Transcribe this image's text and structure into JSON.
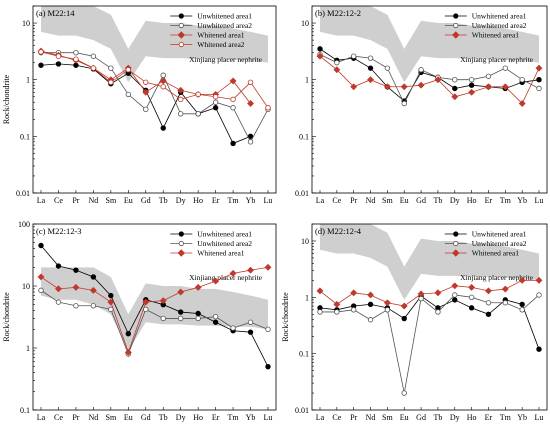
{
  "chart_data": [
    {
      "type": "line",
      "title": "(a) M22:14",
      "xlabel": "",
      "ylabel": "Rock/chondrite",
      "yscale": "log",
      "ylim": [
        0.01,
        20
      ],
      "categories": [
        "La",
        "Ce",
        "Pr",
        "Nd",
        "Sm",
        "Eu",
        "Gd",
        "Tb",
        "Dy",
        "Ho",
        "Er",
        "Tm",
        "Yb",
        "Lu"
      ],
      "y_ticks": [
        "0.01",
        "0.1",
        "1",
        "10"
      ],
      "annotation": "Xinjiang placer nephrite",
      "legend_position": "top-right",
      "band": {
        "upper": [
          20,
          20,
          20,
          20,
          14,
          3.5,
          11,
          10,
          10,
          9,
          9,
          8,
          7,
          6
        ],
        "lower": [
          7,
          6,
          6,
          5,
          3.5,
          0.9,
          2.6,
          2.4,
          2.4,
          2.3,
          2.3,
          2.2,
          2.2,
          2.0
        ]
      },
      "series": [
        {
          "name": "Unwhitened area1",
          "color": "#000000",
          "marker": "filled-circle",
          "values": [
            1.8,
            1.9,
            1.8,
            1.55,
            0.85,
            1.3,
            0.65,
            0.14,
            0.6,
            0.25,
            0.32,
            0.075,
            0.1,
            null
          ]
        },
        {
          "name": "Unwhitened area2",
          "color": "#555555",
          "marker": "open-circle",
          "values": [
            3.0,
            3.0,
            3.0,
            2.6,
            1.6,
            0.55,
            0.3,
            1.2,
            0.25,
            0.25,
            0.4,
            0.32,
            0.08,
            0.3
          ]
        },
        {
          "name": "Whitened area1",
          "color": "#c0392b",
          "marker": "filled-diamond",
          "values": [
            3.2,
            2.7,
            2.2,
            1.6,
            1.0,
            1.6,
            0.6,
            0.95,
            0.65,
            0.55,
            0.55,
            0.95,
            0.38,
            null
          ]
        },
        {
          "name": "Whitened area2",
          "color": "#c0392b",
          "marker": "open-circle",
          "values": [
            3.1,
            2.6,
            2.3,
            1.6,
            0.9,
            1.5,
            0.9,
            0.75,
            0.45,
            0.55,
            0.5,
            0.45,
            0.9,
            0.32
          ]
        }
      ]
    },
    {
      "type": "line",
      "title": "(b) M22:12-2",
      "xlabel": "",
      "ylabel": "",
      "yscale": "log",
      "ylim": [
        0.01,
        20
      ],
      "categories": [
        "La",
        "Ce",
        "Pr",
        "Nd",
        "Sm",
        "Eu",
        "Gd",
        "Tb",
        "Dy",
        "Ho",
        "Er",
        "Tm",
        "Yb",
        "Lu"
      ],
      "y_ticks": [
        "0.01",
        "0.1",
        "1",
        "10"
      ],
      "annotation": "Xinjiang placer nephrite",
      "legend_position": "top-right",
      "band": {
        "upper": [
          20,
          20,
          20,
          20,
          14,
          3.5,
          11,
          10,
          10,
          9,
          9,
          8,
          7,
          6
        ],
        "lower": [
          7,
          6,
          6,
          5,
          3.5,
          0.9,
          2.6,
          2.4,
          2.4,
          2.3,
          2.3,
          2.2,
          2.2,
          2.0
        ]
      },
      "series": [
        {
          "name": "Unwhitened area1",
          "color": "#000000",
          "marker": "filled-circle",
          "values": [
            3.5,
            2.2,
            2.4,
            1.6,
            0.75,
            0.42,
            1.35,
            1.1,
            0.7,
            0.8,
            0.75,
            0.7,
            0.9,
            1.0
          ]
        },
        {
          "name": "Unwhitened area2",
          "color": "#555555",
          "marker": "open-circle",
          "values": [
            2.8,
            2.0,
            2.6,
            2.4,
            1.6,
            0.38,
            1.5,
            1.1,
            1.0,
            1.0,
            1.15,
            1.6,
            1.0,
            0.7
          ]
        },
        {
          "name": "Whitened area1",
          "color": "#c0392b",
          "marker": "filled-diamond",
          "values": [
            2.6,
            1.5,
            0.75,
            1.0,
            0.75,
            0.75,
            0.8,
            1.0,
            0.5,
            0.6,
            0.75,
            0.75,
            0.38,
            1.6
          ]
        }
      ]
    },
    {
      "type": "line",
      "title": "(c) M22:12-3",
      "xlabel": "",
      "ylabel": "Rock/chondrite",
      "yscale": "log",
      "ylim": [
        0.1,
        100
      ],
      "categories": [
        "La",
        "Ce",
        "Pr",
        "Nd",
        "Sm",
        "Eu",
        "Gd",
        "Tb",
        "Dy",
        "Ho",
        "Er",
        "Tm",
        "Yb",
        "Lu"
      ],
      "y_ticks": [
        "0.1",
        "1",
        "10",
        "100"
      ],
      "annotation": "Xinjiang placer nephrite",
      "legend_position": "top-right",
      "band": {
        "upper": [
          20,
          20,
          20,
          20,
          14,
          3.5,
          11,
          10,
          10,
          9,
          9,
          8,
          7,
          6
        ],
        "lower": [
          7,
          6,
          6,
          5,
          3.5,
          0.9,
          2.6,
          2.4,
          2.4,
          2.3,
          2.3,
          2.2,
          2.2,
          2.0
        ]
      },
      "series": [
        {
          "name": "Unwhitened area1",
          "color": "#000000",
          "marker": "filled-circle",
          "values": [
            45,
            21,
            18,
            14,
            7,
            1.7,
            6,
            5,
            3.8,
            3.6,
            2.6,
            1.9,
            1.8,
            0.5
          ]
        },
        {
          "name": "Unwhitened area2",
          "color": "#555555",
          "marker": "open-circle",
          "values": [
            8.5,
            5.5,
            4.8,
            4.8,
            4.2,
            0.8,
            4.2,
            3.0,
            3.0,
            3.0,
            3.2,
            2.1,
            2.6,
            2.0
          ]
        },
        {
          "name": "Whitened area1",
          "color": "#c0392b",
          "marker": "filled-diamond",
          "values": [
            14,
            9,
            9.5,
            8.5,
            5.5,
            0.85,
            5.5,
            5.8,
            8,
            9.5,
            12,
            16,
            18,
            20
          ]
        }
      ]
    },
    {
      "type": "line",
      "title": "(d) M22:12-4",
      "xlabel": "",
      "ylabel": "Rock/chondrite",
      "yscale": "log",
      "ylim": [
        0.01,
        20
      ],
      "categories": [
        "La",
        "Ce",
        "Pr",
        "Nd",
        "Sm",
        "Eu",
        "Gd",
        "Tb",
        "Dy",
        "Ho",
        "Er",
        "Tm",
        "Yb",
        "Lu"
      ],
      "y_ticks": [
        "0.01",
        "0.1",
        "1",
        "10"
      ],
      "annotation": "Xinjiang placer nephrite",
      "legend_position": "top-right",
      "band": {
        "upper": [
          20,
          20,
          20,
          20,
          14,
          3.5,
          11,
          10,
          10,
          9,
          9,
          8,
          7,
          6
        ],
        "lower": [
          7,
          6,
          6,
          5,
          3.5,
          0.9,
          2.6,
          2.4,
          2.4,
          2.3,
          2.3,
          2.2,
          2.2,
          2.0
        ]
      },
      "series": [
        {
          "name": "Unwhitened area1",
          "color": "#000000",
          "marker": "filled-circle",
          "values": [
            0.65,
            0.6,
            0.7,
            0.75,
            0.65,
            0.42,
            1.05,
            0.65,
            0.9,
            0.65,
            0.5,
            0.9,
            0.75,
            0.12
          ]
        },
        {
          "name": "Unwhitened area2",
          "color": "#555555",
          "marker": "open-circle",
          "values": [
            0.55,
            0.55,
            0.6,
            0.4,
            0.6,
            0.02,
            0.95,
            0.55,
            1.1,
            1.0,
            0.8,
            0.8,
            0.6,
            1.1
          ]
        },
        {
          "name": "Whitened area1",
          "color": "#c0392b",
          "marker": "filled-diamond",
          "values": [
            1.3,
            0.75,
            1.2,
            1.1,
            0.8,
            0.7,
            1.15,
            1.2,
            1.6,
            1.5,
            1.3,
            1.4,
            2.0,
            2.0
          ]
        }
      ]
    }
  ]
}
